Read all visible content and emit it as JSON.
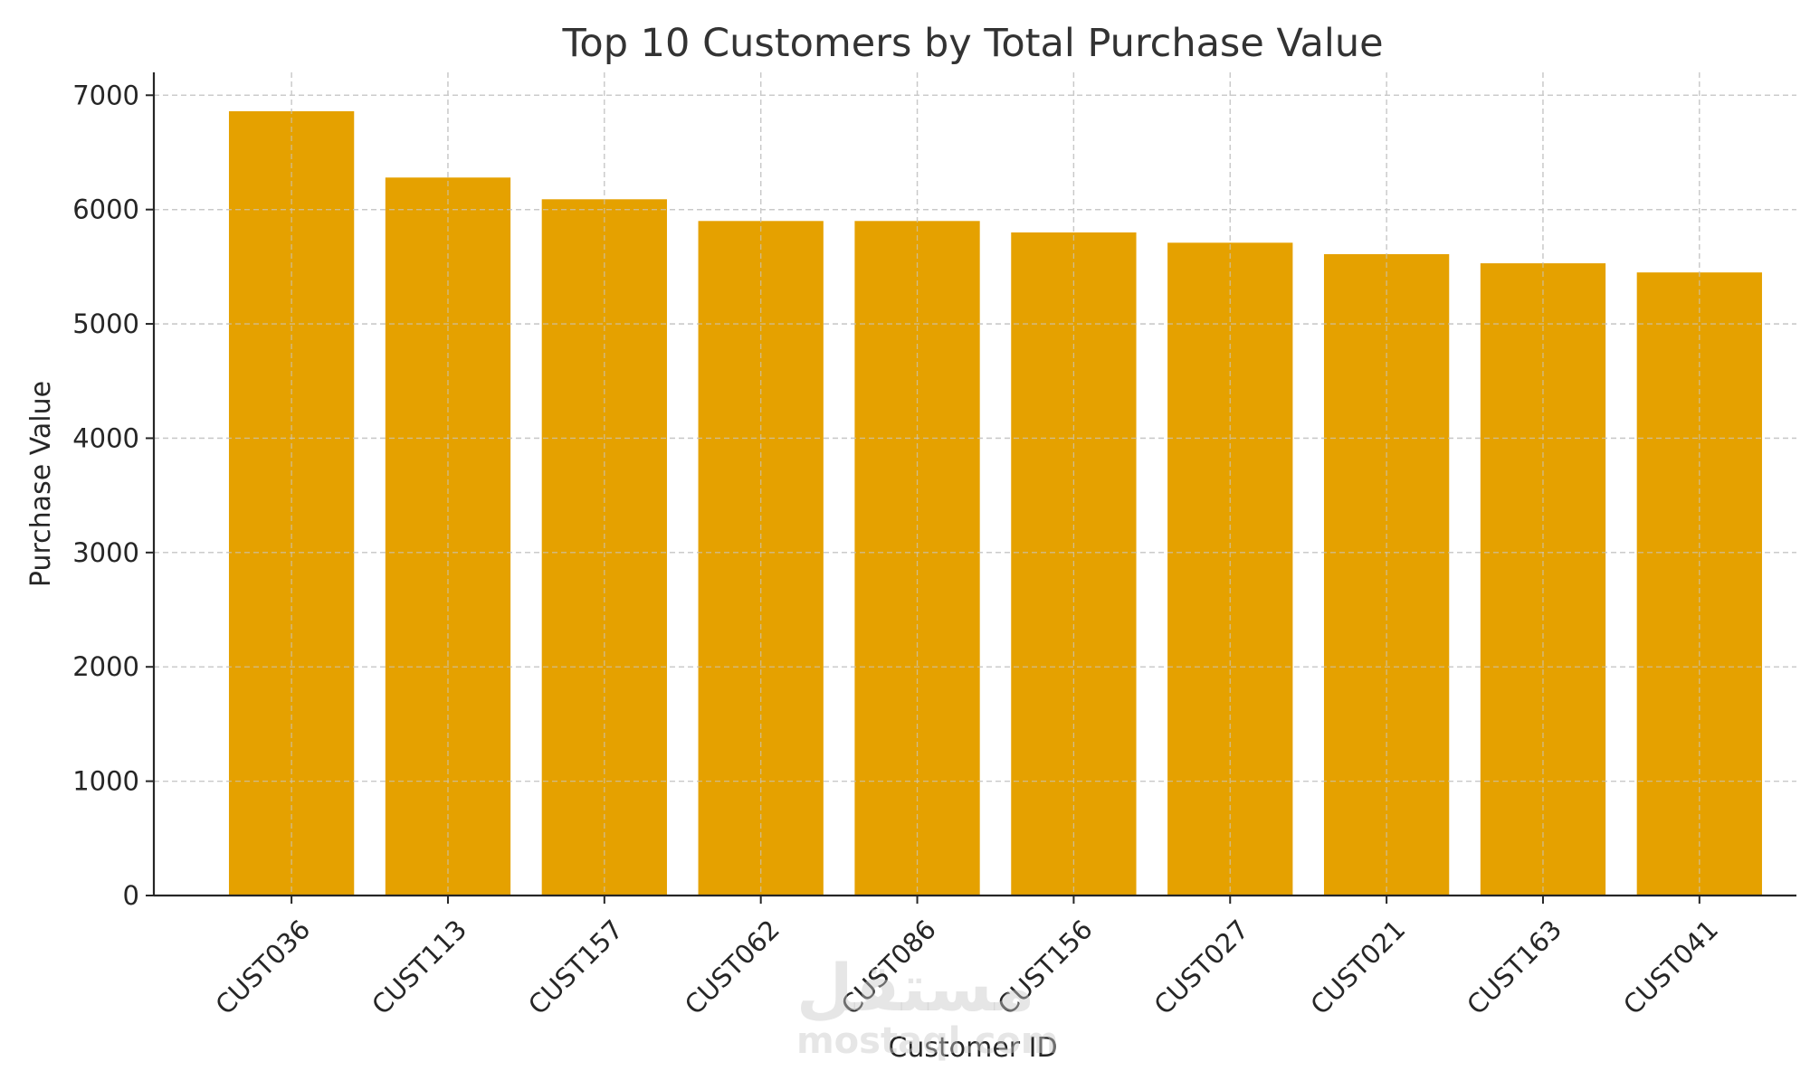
{
  "chart_data": {
    "type": "bar",
    "title": "Top 10 Customers by Total Purchase Value",
    "xlabel": "Customer ID",
    "ylabel": "Purchase Value",
    "categories": [
      "CUST036",
      "CUST113",
      "CUST157",
      "CUST062",
      "CUST086",
      "CUST156",
      "CUST027",
      "CUST021",
      "CUST163",
      "CUST041"
    ],
    "values": [
      6860,
      6280,
      6090,
      5900,
      5900,
      5800,
      5710,
      5610,
      5530,
      5450
    ],
    "ylim": [
      0,
      7200
    ],
    "yticks": [
      0,
      1000,
      2000,
      3000,
      4000,
      5000,
      6000,
      7000
    ],
    "grid": true,
    "bar_color": "#E5A100",
    "grid_color": "#c8c8c8"
  },
  "watermark": {
    "arabic": "مستقل",
    "latin": "mostaql.com"
  }
}
